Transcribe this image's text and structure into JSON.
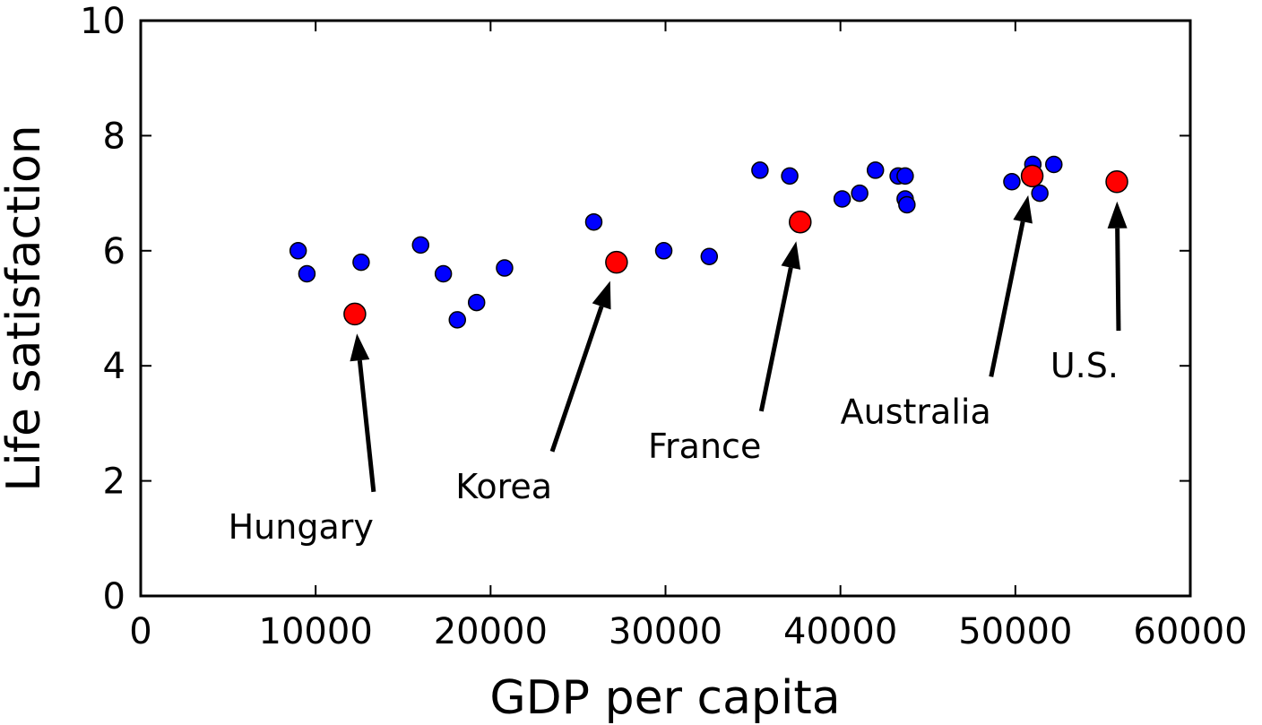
{
  "chart_data": {
    "type": "scatter",
    "title": "",
    "xlabel": "GDP per capita",
    "ylabel": "Life satisfaction",
    "xlim": [
      0,
      60000
    ],
    "ylim": [
      0,
      10
    ],
    "xticks": [
      0,
      10000,
      20000,
      30000,
      40000,
      50000,
      60000
    ],
    "yticks": [
      0,
      2,
      4,
      6,
      8,
      10
    ],
    "grid": false,
    "colors": {
      "points": "#0000ff",
      "highlight": "#ff0000",
      "arrow": "#000000"
    },
    "series": [
      {
        "values": [
          [
            9000,
            6.0
          ],
          [
            9500,
            5.6
          ],
          [
            12600,
            5.8
          ],
          [
            16000,
            6.1
          ],
          [
            17300,
            5.6
          ],
          [
            18100,
            4.8
          ],
          [
            19200,
            5.1
          ],
          [
            20800,
            5.7
          ],
          [
            25900,
            6.5
          ],
          [
            29900,
            6.0
          ],
          [
            32500,
            5.9
          ],
          [
            35400,
            7.4
          ],
          [
            37100,
            7.3
          ],
          [
            40100,
            6.9
          ],
          [
            41100,
            7.0
          ],
          [
            42000,
            7.4
          ],
          [
            43300,
            7.3
          ],
          [
            43700,
            7.3
          ],
          [
            43700,
            6.9
          ],
          [
            43800,
            6.8
          ],
          [
            49800,
            7.2
          ],
          [
            51000,
            7.5
          ],
          [
            51400,
            7.0
          ],
          [
            52200,
            7.5
          ]
        ]
      },
      {
        "values": [
          [
            12240,
            4.9
          ],
          [
            27200,
            5.8
          ],
          [
            37700,
            6.5
          ],
          [
            50960,
            7.3
          ],
          [
            55800,
            7.2
          ]
        ]
      }
    ],
    "annotations": [
      {
        "text": "Hungary",
        "point": [
          12240,
          4.9
        ],
        "text_xy": [
          5000,
          1.0
        ]
      },
      {
        "text": "Korea",
        "point": [
          27200,
          5.8
        ],
        "text_xy": [
          18000,
          1.7
        ]
      },
      {
        "text": "France",
        "point": [
          37700,
          6.5
        ],
        "text_xy": [
          29000,
          2.4
        ]
      },
      {
        "text": "Australia",
        "point": [
          50960,
          7.3
        ],
        "text_xy": [
          40000,
          3.0
        ]
      },
      {
        "text": "U.S.",
        "point": [
          55800,
          7.2
        ],
        "text_xy": [
          52000,
          3.8
        ]
      }
    ]
  }
}
